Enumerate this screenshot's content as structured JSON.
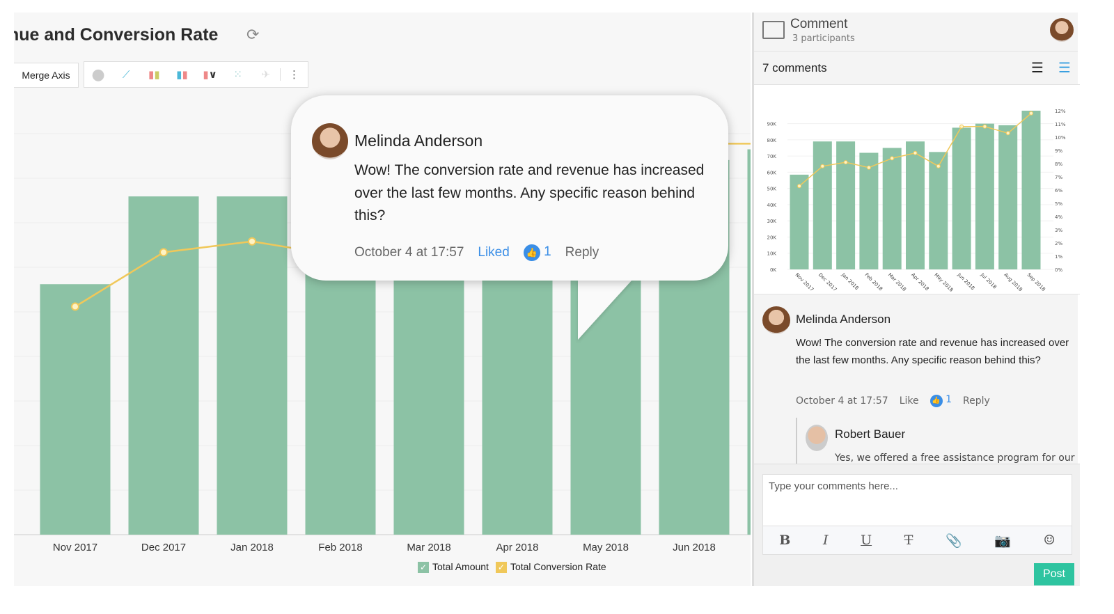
{
  "report": {
    "title": "nue and Conversion Rate",
    "merge_axis_label": "Merge Axis",
    "chart_type_icons": [
      "pie-chart-icon",
      "line-chart-icon",
      "bar-chart-icon",
      "stacked-bar-chart-icon",
      "combo-chart-icon",
      "scatter-chart-icon",
      "map-chart-icon"
    ]
  },
  "chart_data": [
    {
      "type": "bar",
      "categories": [
        "Nov 2017",
        "Dec 2017",
        "Jan 2018",
        "Feb 2018",
        "Mar 2018",
        "Apr 2018",
        "May 2018",
        "Jun 2018",
        "Jul 2018"
      ],
      "series": [
        {
          "name": "Total Amount",
          "type": "bar",
          "color": "#8cc2a5",
          "values": [
            58500,
            79000,
            79000,
            72000,
            75000,
            79000,
            72500,
            87500,
            90000
          ]
        },
        {
          "name": "Total Conversion Rate",
          "type": "line",
          "color": "#f0c85a",
          "values": [
            6.3,
            7.8,
            8.1,
            7.7,
            8.4,
            8.8,
            7.8,
            10.8,
            10.8
          ]
        }
      ],
      "legend": "bottom"
    },
    {
      "type": "bar",
      "categories": [
        "Nov 2017",
        "Dec 2017",
        "Jan 2018",
        "Feb 2018",
        "Mar 2018",
        "Apr 2018",
        "May 2018",
        "Jun 2018",
        "Jul 2018",
        "Aug 2018",
        "Sep 2018"
      ],
      "series": [
        {
          "type": "bar",
          "color": "#8cc2a5",
          "values": [
            58500,
            79000,
            79000,
            72000,
            75000,
            79000,
            72500,
            87500,
            90000,
            89000,
            98000
          ]
        },
        {
          "type": "line",
          "color": "#f0c85a",
          "values": [
            6.3,
            7.8,
            8.1,
            7.7,
            8.4,
            8.8,
            7.8,
            10.8,
            10.8,
            10.3,
            11.8
          ]
        }
      ],
      "y_ticks": [
        "0K",
        "10K",
        "20K",
        "30K",
        "40K",
        "50K",
        "60K",
        "70K",
        "80K",
        "90K"
      ],
      "y2_ticks": [
        "0%",
        "1%",
        "2%",
        "3%",
        "4%",
        "5%",
        "6%",
        "7%",
        "8%",
        "9%",
        "10%",
        "11%",
        "12%"
      ],
      "ylim": [
        0,
        98000
      ],
      "y2lim": [
        0,
        12
      ]
    }
  ],
  "bubble": {
    "author": "Melinda Anderson",
    "text": "Wow! The conversion rate and revenue has increased over the last few months. Any specific reason behind this?",
    "time": "October 4 at 17:57",
    "liked": "Liked",
    "likes": "1",
    "reply": "Reply"
  },
  "panel": {
    "title": "Comment",
    "participants": "3 participants",
    "count": "7 comments",
    "comments": [
      {
        "author": "Melinda Anderson",
        "text": "Wow! The conversion rate and revenue has increased over the last few months. Any specific reason behind this?",
        "time": "October 4 at 17:57",
        "like": "Like",
        "likes": "1",
        "reply": "Reply"
      },
      {
        "author": "Robert Bauer",
        "text": "Yes, we offered a free assistance program for our"
      }
    ],
    "placeholder": "Type your comments here...",
    "post": "Post"
  }
}
